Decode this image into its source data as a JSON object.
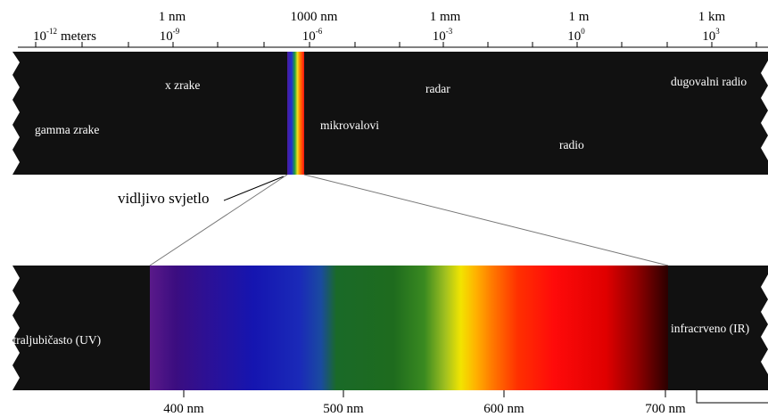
{
  "scale": {
    "meters_base": "10",
    "meters_exp": "-12",
    "meters_unit": "meters",
    "ticks": [
      {
        "name": "1 nm",
        "base": "10",
        "exp": "-9"
      },
      {
        "name": "1000 nm",
        "base": "10",
        "exp": "-6"
      },
      {
        "name": "1 mm",
        "base": "10",
        "exp": "-3"
      },
      {
        "name": "1 m",
        "base": "10",
        "exp": "0"
      },
      {
        "name": "1 km",
        "base": "10",
        "exp": "3"
      }
    ]
  },
  "em_band": {
    "x_zrake": "x zrake",
    "gamma_zrake": "gamma zrake",
    "mikrovalovi": "mikrovalovi",
    "radar": "radar",
    "radio": "radio",
    "dugovalni_radio": "dugovalni radio"
  },
  "visible_light_label": "vidljivo svjetlo",
  "visible_band": {
    "uv_label": "ultraljubičasto (UV)",
    "ir_label": "infracrveno (IR)"
  },
  "nm_axis": [
    "400 nm",
    "500 nm",
    "600 nm",
    "700 nm"
  ],
  "colors": {
    "band": "#111111",
    "violet": "#3a0e78",
    "blue": "#1a1aa8",
    "green": "#1e6b1e",
    "yellow": "#f2e400",
    "orange": "#ff7a00",
    "red": "#ff0a0a",
    "dark_red": "#3a0000"
  }
}
